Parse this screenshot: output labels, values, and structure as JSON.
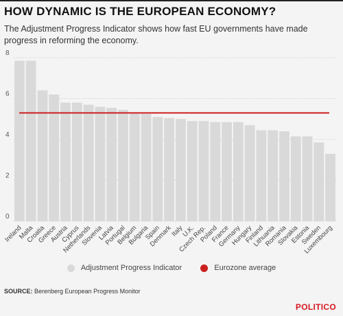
{
  "header": {
    "title": "HOW DYNAMIC IS THE EUROPEAN ECONOMY?",
    "subtitle": "The Adjustment Progress Indicator shows how fast EU governments have made progress in reforming the economy."
  },
  "legend": {
    "series_label": "Adjustment Progress Indicator",
    "average_label": "Eurozone average"
  },
  "footer": {
    "source_label": "SOURCE:",
    "source_text": "Berenberg European Progress Monitor",
    "brand": "POLITICO"
  },
  "colors": {
    "bar": "#d9d9d9",
    "average": "#cc1f1f",
    "grid": "#cfcfcf"
  },
  "chart_data": {
    "type": "bar",
    "categories": [
      "Ireland",
      "Malta",
      "Croatia",
      "Greece",
      "Austria",
      "Cyprus",
      "Netherlands",
      "Slovenia",
      "Latvia",
      "Portugal",
      "Belgium",
      "Bulgaria",
      "Spain",
      "Denmark",
      "Italy",
      "U.K.",
      "Czech Rep.",
      "Poland",
      "France",
      "Germany",
      "Hungary",
      "Finland",
      "Lithuania",
      "Romania",
      "Slovakia",
      "Estonia",
      "Sweden",
      "Luxembourg"
    ],
    "series": [
      {
        "name": "Adjustment Progress Indicator",
        "values": [
          7.85,
          7.85,
          6.4,
          6.2,
          5.8,
          5.8,
          5.7,
          5.6,
          5.55,
          5.45,
          5.3,
          5.25,
          5.1,
          5.05,
          5.0,
          4.9,
          4.9,
          4.85,
          4.85,
          4.85,
          4.7,
          4.45,
          4.45,
          4.4,
          4.15,
          4.15,
          3.85,
          3.3
        ]
      }
    ],
    "reference_line": {
      "name": "Eurozone average",
      "value": 5.3
    },
    "ylim": [
      0,
      8
    ],
    "yticks": [
      0,
      2,
      4,
      6,
      8
    ],
    "xlabel": "",
    "ylabel": "",
    "grid": true,
    "legend": "bottom"
  }
}
